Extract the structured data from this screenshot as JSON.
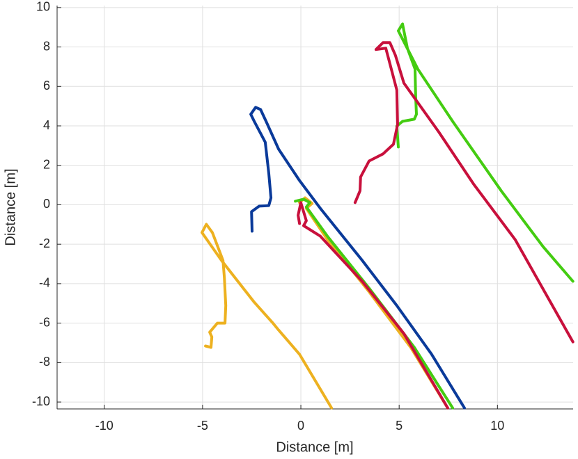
{
  "chart_data": {
    "type": "line",
    "xlabel": "Distance [m]",
    "ylabel": "Distance [m]",
    "xlim": [
      -12.4,
      13.85
    ],
    "ylim": [
      -10.35,
      10.1
    ],
    "xticks": [
      -10,
      -5,
      0,
      5,
      10
    ],
    "yticks": [
      -10,
      -8,
      -6,
      -4,
      -2,
      0,
      2,
      4,
      6,
      8,
      10
    ],
    "grid": true,
    "series": [
      {
        "color": "#0a3a9a",
        "x": [
          -2.48,
          -2.51,
          -2.12,
          -1.63,
          -1.52,
          -1.63,
          -1.81,
          -2.37,
          -2.55,
          -2.3,
          -2.05,
          -1.77,
          -1.13,
          -0.07,
          0.99,
          3.12,
          4.88,
          6.65,
          8.32
        ],
        "values": [
          -1.34,
          -0.35,
          -0.07,
          -0.04,
          0.35,
          1.59,
          3.17,
          4.23,
          4.59,
          4.94,
          4.83,
          4.23,
          2.82,
          1.23,
          -0.18,
          -2.82,
          -5.11,
          -7.58,
          -10.3
        ]
      },
      {
        "color": "#edb120",
        "x": [
          -4.85,
          -4.57,
          -4.53,
          -4.64,
          -4.25,
          -3.86,
          -3.82,
          -3.89,
          -3.96,
          -4.5,
          -4.81,
          -5.03,
          -4.04,
          -2.37,
          -1.42,
          -1.13,
          -0.07,
          1.56,
          null,
          -0.07,
          0.21,
          0.57,
          0.28,
          1.35,
          3.47,
          5.59,
          7.47
        ],
        "values": [
          -7.16,
          -7.23,
          -6.7,
          -6.46,
          -6.0,
          -6.0,
          -5.11,
          -3.7,
          -2.82,
          -1.41,
          -0.99,
          -1.41,
          -2.82,
          -4.94,
          -6.0,
          -6.35,
          -7.58,
          -10.3,
          null,
          0.11,
          0.35,
          0.07,
          -0.18,
          -1.76,
          -4.41,
          -7.23,
          -10.3
        ]
      },
      {
        "color": "#44cc11",
        "x": [
          -0.28,
          0.14,
          0.46,
          0.28,
          1.35,
          3.47,
          5.77,
          7.72,
          null,
          4.96,
          4.88,
          5.17,
          5.77,
          5.88,
          5.84,
          5.81,
          5.42,
          5.17,
          4.96,
          5.95,
          7.72,
          10.19,
          12.32,
          13.84
        ],
        "values": [
          0.18,
          0.28,
          0.11,
          -0.11,
          -1.59,
          -4.23,
          -7.23,
          -10.3,
          null,
          2.93,
          3.99,
          4.23,
          4.34,
          4.59,
          5.47,
          6.88,
          7.94,
          9.17,
          8.82,
          6.88,
          4.23,
          0.71,
          -2.12,
          -3.88
        ]
      },
      {
        "color": "#c8103c",
        "x": [
          -0.07,
          -0.14,
          0,
          0.28,
          0.14,
          0.99,
          3.12,
          5.24,
          7.47,
          null,
          2.76,
          3.01,
          3.04,
          3.47,
          4.18,
          4.71,
          4.92,
          4.88,
          4.6,
          4.32,
          3.82,
          4.18,
          4.53,
          4.81,
          5.24,
          7.01,
          8.78,
          10.9,
          13.84
        ],
        "values": [
          -0.95,
          -0.53,
          0.11,
          -0.81,
          -1.06,
          -1.59,
          -3.88,
          -6.53,
          -10.3,
          null,
          0.11,
          0.71,
          1.41,
          2.22,
          2.58,
          3.07,
          4.06,
          5.82,
          6.88,
          7.94,
          7.87,
          8.22,
          8.22,
          7.58,
          6.17,
          3.7,
          1.06,
          -1.76,
          -6.95
        ]
      }
    ]
  }
}
